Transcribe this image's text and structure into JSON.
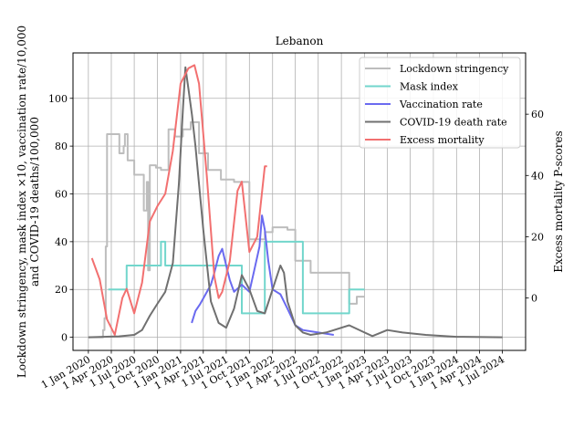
{
  "chart_data": {
    "type": "line",
    "title": "Lebanon",
    "ylabel_left": [
      "Lockdown stringency, mask index ×10, vaccination rate/10,000",
      "and COVID-19 deaths/100,000"
    ],
    "ylabel_right": "Excess mortality P-scores",
    "ylim_left": [
      -5.5,
      119
    ],
    "ylim_right": [
      -17.1,
      80
    ],
    "grid": true,
    "legend_position": "top-right",
    "x_ticks": [
      "1 Jan 2020",
      "1 Apr 2020",
      "1 Jul 2020",
      "1 Oct 2020",
      "1 Jan 2021",
      "1 Apr 2021",
      "1 Jul 2021",
      "1 Oct 2021",
      "1 Jan 2022",
      "1 Apr 2022",
      "1 Jul 2022",
      "1 Oct 2022",
      "1 Jan 2023",
      "1 Apr 2023",
      "1 Jul 2023",
      "1 Oct 2023",
      "1 Jan 2024",
      "1 Apr 2024",
      "1 Jul 2024"
    ],
    "y_ticks_left": [
      0,
      20,
      40,
      60,
      80,
      100
    ],
    "y_ticks_right": [
      0,
      20,
      40,
      60
    ],
    "series": [
      {
        "name": "Lockdown stringency",
        "color": "#bdbdbd",
        "width": 2,
        "axis": "left",
        "step": true,
        "points": [
          [
            "2020-01-01",
            0
          ],
          [
            "2020-02-20",
            0
          ],
          [
            "2020-02-28",
            3
          ],
          [
            "2020-03-05",
            8
          ],
          [
            "2020-03-10",
            38
          ],
          [
            "2020-03-15",
            85
          ],
          [
            "2020-04-30",
            85
          ],
          [
            "2020-05-03",
            77
          ],
          [
            "2020-05-20",
            80
          ],
          [
            "2020-05-25",
            85
          ],
          [
            "2020-06-05",
            74
          ],
          [
            "2020-07-01",
            68
          ],
          [
            "2020-08-05",
            68
          ],
          [
            "2020-08-08",
            53
          ],
          [
            "2020-08-20",
            65
          ],
          [
            "2020-08-25",
            28
          ],
          [
            "2020-09-01",
            72
          ],
          [
            "2020-09-25",
            71
          ],
          [
            "2020-10-15",
            70
          ],
          [
            "2020-11-14",
            87
          ],
          [
            "2020-12-10",
            84
          ],
          [
            "2021-01-10",
            87
          ],
          [
            "2021-02-10",
            90
          ],
          [
            "2021-03-15",
            77
          ],
          [
            "2021-04-20",
            70
          ],
          [
            "2021-06-10",
            66
          ],
          [
            "2021-08-01",
            65
          ],
          [
            "2021-10-01",
            41
          ],
          [
            "2021-11-15",
            41
          ],
          [
            "2021-12-01",
            44
          ],
          [
            "2022-01-01",
            46
          ],
          [
            "2022-03-01",
            45
          ],
          [
            "2022-04-01",
            32
          ],
          [
            "2022-06-01",
            27
          ],
          [
            "2022-11-01",
            14
          ],
          [
            "2022-12-01",
            17
          ],
          [
            "2023-01-01",
            17
          ]
        ]
      },
      {
        "name": "Mask index",
        "color": "#72d6cc",
        "width": 2,
        "axis": "left",
        "step": true,
        "points": [
          [
            "2020-03-20",
            20
          ],
          [
            "2020-06-01",
            30
          ],
          [
            "2020-10-15",
            40
          ],
          [
            "2020-11-01",
            30
          ],
          [
            "2021-09-01",
            10
          ],
          [
            "2021-12-01",
            40
          ],
          [
            "2022-05-01",
            10
          ],
          [
            "2022-11-01",
            20
          ],
          [
            "2023-01-01",
            20
          ]
        ]
      },
      {
        "name": "Vaccination rate",
        "color": "#6a6af0",
        "width": 2,
        "axis": "left",
        "step": false,
        "points": [
          [
            "2021-02-14",
            6
          ],
          [
            "2021-03-01",
            11
          ],
          [
            "2021-03-20",
            14
          ],
          [
            "2021-04-10",
            18
          ],
          [
            "2021-05-01",
            22
          ],
          [
            "2021-05-15",
            27
          ],
          [
            "2021-06-01",
            34
          ],
          [
            "2021-06-15",
            37
          ],
          [
            "2021-07-01",
            30
          ],
          [
            "2021-07-15",
            24
          ],
          [
            "2021-08-01",
            19
          ],
          [
            "2021-09-01",
            22
          ],
          [
            "2021-10-01",
            19
          ],
          [
            "2021-10-20",
            28
          ],
          [
            "2021-11-10",
            38
          ],
          [
            "2021-11-20",
            51
          ],
          [
            "2021-12-01",
            45
          ],
          [
            "2021-12-15",
            32
          ],
          [
            "2022-01-01",
            20
          ],
          [
            "2022-02-01",
            18
          ],
          [
            "2022-03-01",
            12
          ],
          [
            "2022-04-01",
            5
          ],
          [
            "2022-05-01",
            3
          ],
          [
            "2022-07-01",
            2
          ],
          [
            "2022-09-01",
            1
          ]
        ]
      },
      {
        "name": "COVID-19 death rate",
        "color": "#707070",
        "width": 2,
        "axis": "left",
        "step": false,
        "points": [
          [
            "2020-01-01",
            0
          ],
          [
            "2020-03-01",
            0.2
          ],
          [
            "2020-05-01",
            0.4
          ],
          [
            "2020-07-01",
            1
          ],
          [
            "2020-08-01",
            3
          ],
          [
            "2020-09-01",
            9
          ],
          [
            "2020-10-01",
            14
          ],
          [
            "2020-11-01",
            19
          ],
          [
            "2020-12-01",
            31
          ],
          [
            "2020-12-25",
            64
          ],
          [
            "2021-01-10",
            95
          ],
          [
            "2021-01-20",
            113
          ],
          [
            "2021-02-01",
            104
          ],
          [
            "2021-02-15",
            93
          ],
          [
            "2021-03-01",
            80
          ],
          [
            "2021-04-01",
            45
          ],
          [
            "2021-05-01",
            15
          ],
          [
            "2021-06-01",
            6
          ],
          [
            "2021-07-01",
            4
          ],
          [
            "2021-08-01",
            12
          ],
          [
            "2021-09-01",
            26
          ],
          [
            "2021-10-01",
            20
          ],
          [
            "2021-11-01",
            11
          ],
          [
            "2021-12-01",
            10
          ],
          [
            "2022-01-01",
            20
          ],
          [
            "2022-02-01",
            30
          ],
          [
            "2022-02-15",
            27
          ],
          [
            "2022-03-01",
            15
          ],
          [
            "2022-04-01",
            5
          ],
          [
            "2022-05-01",
            2
          ],
          [
            "2022-06-01",
            1
          ],
          [
            "2022-08-01",
            2
          ],
          [
            "2022-11-01",
            5
          ],
          [
            "2023-01-01",
            2
          ],
          [
            "2023-02-01",
            0.5
          ],
          [
            "2023-04-01",
            3
          ],
          [
            "2023-06-01",
            2
          ],
          [
            "2023-09-01",
            1
          ],
          [
            "2024-01-01",
            0.2
          ],
          [
            "2024-07-01",
            0
          ]
        ]
      },
      {
        "name": "Excess mortality",
        "color": "#f27070",
        "width": 2,
        "axis": "right",
        "step": false,
        "points": [
          [
            "2020-01-15",
            13
          ],
          [
            "2020-02-15",
            6
          ],
          [
            "2020-03-15",
            -7
          ],
          [
            "2020-04-15",
            -12
          ],
          [
            "2020-05-15",
            0
          ],
          [
            "2020-06-01",
            3
          ],
          [
            "2020-07-01",
            -5
          ],
          [
            "2020-08-01",
            5
          ],
          [
            "2020-09-01",
            25
          ],
          [
            "2020-10-01",
            30
          ],
          [
            "2020-11-01",
            34
          ],
          [
            "2020-12-01",
            48
          ],
          [
            "2021-01-01",
            70
          ],
          [
            "2021-02-01",
            75
          ],
          [
            "2021-02-25",
            76
          ],
          [
            "2021-03-15",
            70
          ],
          [
            "2021-04-15",
            40
          ],
          [
            "2021-05-15",
            7
          ],
          [
            "2021-06-01",
            0
          ],
          [
            "2021-06-15",
            2
          ],
          [
            "2021-07-15",
            12
          ],
          [
            "2021-08-15",
            35
          ],
          [
            "2021-09-01",
            38
          ],
          [
            "2021-10-01",
            15
          ],
          [
            "2021-11-01",
            20
          ],
          [
            "2021-12-01",
            43
          ],
          [
            "2021-12-10",
            43
          ]
        ]
      }
    ]
  }
}
